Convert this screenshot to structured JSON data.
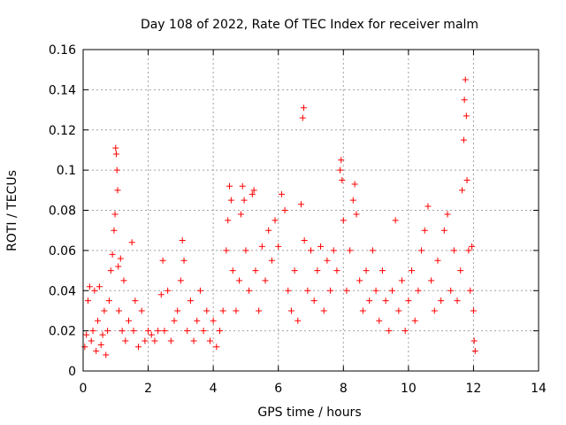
{
  "chart_data": {
    "type": "scatter",
    "title": "Day 108 of 2022, Rate Of TEC Index for receiver malm",
    "xlabel": "GPS time / hours",
    "ylabel": "ROTI / TECUs",
    "xlim": [
      0,
      14
    ],
    "ylim": [
      0,
      0.16
    ],
    "x_ticks": [
      0,
      2,
      4,
      6,
      8,
      10,
      12,
      14
    ],
    "x_tick_labels": [
      "0",
      "2",
      "4",
      "6",
      "8",
      "10",
      "12",
      "14"
    ],
    "y_ticks": [
      0,
      0.02,
      0.04,
      0.06,
      0.08,
      0.1,
      0.12,
      0.14,
      0.16
    ],
    "y_tick_labels": [
      "0",
      "0.02",
      "0.04",
      "0.06",
      "0.08",
      "0.1",
      "0.12",
      "0.14",
      "0.16"
    ],
    "grid": true,
    "marker": "+",
    "color": "#ff0000",
    "series": [
      {
        "points": [
          [
            0.05,
            0.012
          ],
          [
            0.1,
            0.018
          ],
          [
            0.15,
            0.035
          ],
          [
            0.2,
            0.042
          ],
          [
            0.25,
            0.015
          ],
          [
            0.3,
            0.02
          ],
          [
            0.35,
            0.04
          ],
          [
            0.4,
            0.01
          ],
          [
            0.45,
            0.025
          ],
          [
            0.5,
            0.042
          ],
          [
            0.55,
            0.013
          ],
          [
            0.6,
            0.018
          ],
          [
            0.65,
            0.03
          ],
          [
            0.7,
            0.008
          ],
          [
            0.75,
            0.02
          ],
          [
            0.8,
            0.035
          ],
          [
            0.85,
            0.05
          ],
          [
            0.9,
            0.058
          ],
          [
            0.95,
            0.07
          ],
          [
            0.98,
            0.078
          ],
          [
            1.0,
            0.111
          ],
          [
            1.02,
            0.108
          ],
          [
            1.04,
            0.1
          ],
          [
            1.06,
            0.09
          ],
          [
            1.08,
            0.052
          ],
          [
            1.1,
            0.03
          ],
          [
            1.15,
            0.056
          ],
          [
            1.2,
            0.02
          ],
          [
            1.25,
            0.045
          ],
          [
            1.3,
            0.015
          ],
          [
            1.4,
            0.025
          ],
          [
            1.5,
            0.064
          ],
          [
            1.55,
            0.02
          ],
          [
            1.6,
            0.035
          ],
          [
            1.7,
            0.012
          ],
          [
            1.8,
            0.03
          ],
          [
            1.9,
            0.015
          ],
          [
            2.0,
            0.02
          ],
          [
            2.1,
            0.018
          ],
          [
            2.2,
            0.015
          ],
          [
            2.3,
            0.02
          ],
          [
            2.4,
            0.038
          ],
          [
            2.45,
            0.055
          ],
          [
            2.5,
            0.02
          ],
          [
            2.6,
            0.04
          ],
          [
            2.7,
            0.015
          ],
          [
            2.8,
            0.025
          ],
          [
            2.9,
            0.03
          ],
          [
            3.0,
            0.045
          ],
          [
            3.05,
            0.065
          ],
          [
            3.1,
            0.055
          ],
          [
            3.2,
            0.02
          ],
          [
            3.3,
            0.035
          ],
          [
            3.4,
            0.015
          ],
          [
            3.5,
            0.025
          ],
          [
            3.6,
            0.04
          ],
          [
            3.7,
            0.02
          ],
          [
            3.8,
            0.03
          ],
          [
            3.9,
            0.015
          ],
          [
            4.0,
            0.025
          ],
          [
            4.1,
            0.012
          ],
          [
            4.2,
            0.02
          ],
          [
            4.3,
            0.03
          ],
          [
            4.4,
            0.06
          ],
          [
            4.45,
            0.075
          ],
          [
            4.5,
            0.092
          ],
          [
            4.55,
            0.085
          ],
          [
            4.6,
            0.05
          ],
          [
            4.7,
            0.03
          ],
          [
            4.8,
            0.045
          ],
          [
            4.85,
            0.078
          ],
          [
            4.9,
            0.092
          ],
          [
            4.95,
            0.085
          ],
          [
            5.0,
            0.06
          ],
          [
            5.1,
            0.04
          ],
          [
            5.2,
            0.088
          ],
          [
            5.25,
            0.09
          ],
          [
            5.3,
            0.05
          ],
          [
            5.4,
            0.03
          ],
          [
            5.5,
            0.062
          ],
          [
            5.6,
            0.045
          ],
          [
            5.7,
            0.07
          ],
          [
            5.8,
            0.055
          ],
          [
            5.9,
            0.075
          ],
          [
            6.0,
            0.062
          ],
          [
            6.1,
            0.088
          ],
          [
            6.2,
            0.08
          ],
          [
            6.3,
            0.04
          ],
          [
            6.4,
            0.03
          ],
          [
            6.5,
            0.05
          ],
          [
            6.6,
            0.025
          ],
          [
            6.7,
            0.083
          ],
          [
            6.75,
            0.126
          ],
          [
            6.78,
            0.131
          ],
          [
            6.8,
            0.065
          ],
          [
            6.9,
            0.04
          ],
          [
            7.0,
            0.06
          ],
          [
            7.1,
            0.035
          ],
          [
            7.2,
            0.05
          ],
          [
            7.3,
            0.062
          ],
          [
            7.4,
            0.03
          ],
          [
            7.5,
            0.055
          ],
          [
            7.6,
            0.04
          ],
          [
            7.7,
            0.06
          ],
          [
            7.8,
            0.05
          ],
          [
            7.9,
            0.1
          ],
          [
            7.93,
            0.105
          ],
          [
            7.96,
            0.095
          ],
          [
            8.0,
            0.075
          ],
          [
            8.1,
            0.04
          ],
          [
            8.2,
            0.06
          ],
          [
            8.3,
            0.085
          ],
          [
            8.35,
            0.093
          ],
          [
            8.4,
            0.078
          ],
          [
            8.5,
            0.045
          ],
          [
            8.6,
            0.03
          ],
          [
            8.7,
            0.05
          ],
          [
            8.8,
            0.035
          ],
          [
            8.9,
            0.06
          ],
          [
            9.0,
            0.04
          ],
          [
            9.1,
            0.025
          ],
          [
            9.2,
            0.05
          ],
          [
            9.3,
            0.035
          ],
          [
            9.4,
            0.02
          ],
          [
            9.5,
            0.04
          ],
          [
            9.6,
            0.075
          ],
          [
            9.7,
            0.03
          ],
          [
            9.8,
            0.045
          ],
          [
            9.9,
            0.02
          ],
          [
            10.0,
            0.035
          ],
          [
            10.1,
            0.05
          ],
          [
            10.2,
            0.025
          ],
          [
            10.3,
            0.04
          ],
          [
            10.4,
            0.06
          ],
          [
            10.5,
            0.07
          ],
          [
            10.6,
            0.082
          ],
          [
            10.7,
            0.045
          ],
          [
            10.8,
            0.03
          ],
          [
            10.9,
            0.055
          ],
          [
            11.0,
            0.035
          ],
          [
            11.1,
            0.07
          ],
          [
            11.2,
            0.078
          ],
          [
            11.3,
            0.04
          ],
          [
            11.4,
            0.06
          ],
          [
            11.5,
            0.035
          ],
          [
            11.6,
            0.05
          ],
          [
            11.65,
            0.09
          ],
          [
            11.7,
            0.115
          ],
          [
            11.72,
            0.135
          ],
          [
            11.75,
            0.145
          ],
          [
            11.78,
            0.127
          ],
          [
            11.8,
            0.095
          ],
          [
            11.85,
            0.06
          ],
          [
            11.9,
            0.04
          ],
          [
            11.95,
            0.062
          ],
          [
            12.0,
            0.03
          ],
          [
            12.02,
            0.015
          ],
          [
            12.05,
            0.01
          ]
        ]
      }
    ]
  }
}
